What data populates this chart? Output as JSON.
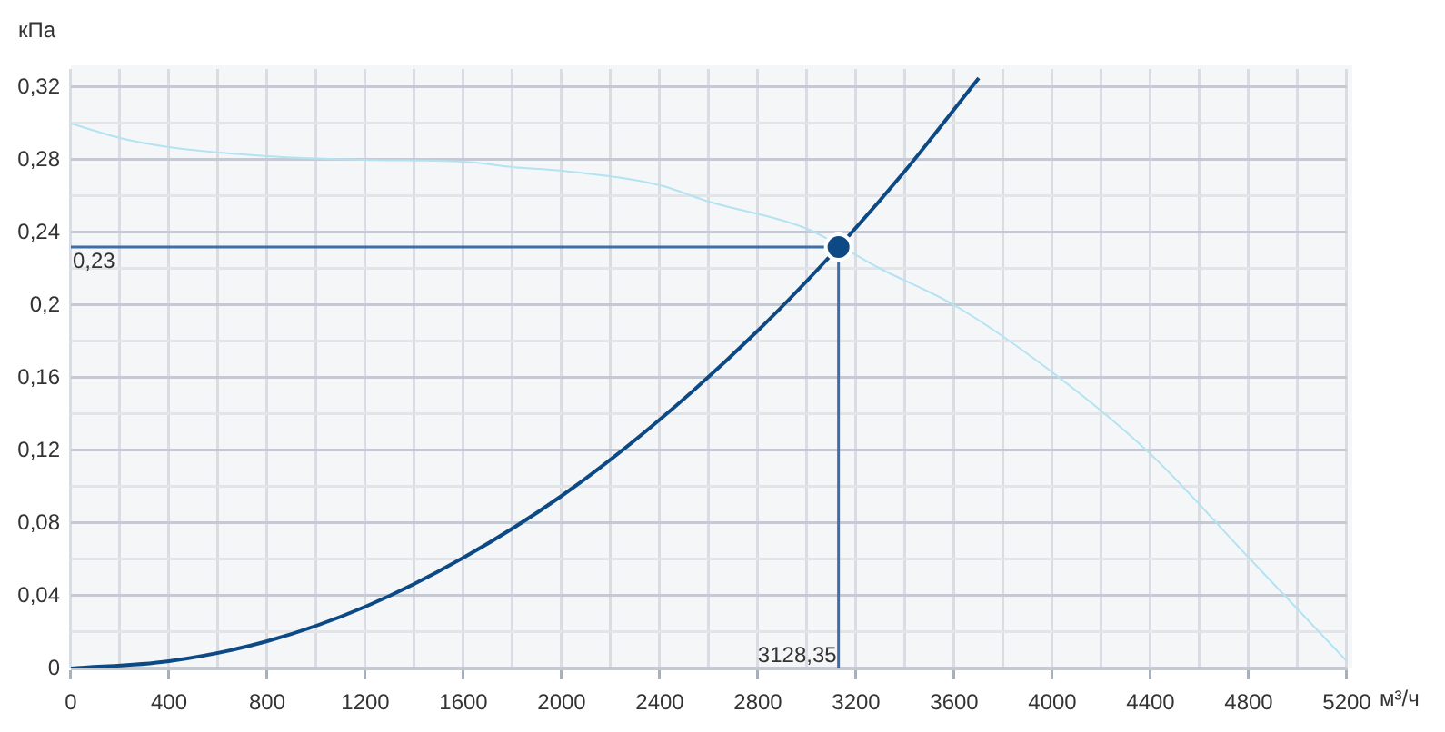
{
  "chart_data": {
    "type": "line",
    "xlabel": "м³/ч",
    "ylabel": "кПа",
    "grid": true,
    "legend": false,
    "marker": "none",
    "line_style": "solid",
    "xlim": [
      0,
      5200
    ],
    "ylim": [
      0,
      0.33
    ],
    "xticks": [
      0,
      {
        "value": 200,
        "label": null
      },
      400,
      {
        "value": 600,
        "label": null
      },
      800,
      {
        "value": 1000,
        "label": null
      },
      1200,
      {
        "value": 1400,
        "label": null
      },
      1600,
      {
        "value": 1800,
        "label": null
      },
      2000,
      {
        "value": 2200,
        "label": null
      },
      2400,
      {
        "value": 2600,
        "label": null
      },
      2800,
      {
        "value": 3000,
        "label": null
      },
      3200,
      {
        "value": 3400,
        "label": null
      },
      3600,
      {
        "value": 3800,
        "label": null
      },
      4000,
      {
        "value": 4200,
        "label": null
      },
      4400,
      {
        "value": 4600,
        "label": null
      },
      4800,
      {
        "value": 5000,
        "label": null
      },
      5200
    ],
    "yticks": [
      0,
      {
        "value": 0.02,
        "label": null
      },
      {
        "value": 0.04,
        "label": "0,04"
      },
      {
        "value": 0.06,
        "label": null
      },
      {
        "value": 0.08,
        "label": "0,08"
      },
      {
        "value": 0.1,
        "label": null
      },
      {
        "value": 0.12,
        "label": "0,12"
      },
      {
        "value": 0.14,
        "label": null
      },
      {
        "value": 0.16,
        "label": "0,16"
      },
      {
        "value": 0.18,
        "label": null
      },
      {
        "value": 0.2,
        "label": "0,2"
      },
      {
        "value": 0.22,
        "label": null
      },
      {
        "value": 0.24,
        "label": "0,24"
      },
      {
        "value": 0.26,
        "label": null
      },
      {
        "value": 0.28,
        "label": "0,28"
      },
      {
        "value": 0.3,
        "label": null
      },
      {
        "value": 0.32,
        "label": "0,32"
      }
    ],
    "series": [
      {
        "color": "#b3e3f2",
        "x": [
          0,
          200,
          400,
          800,
          1200,
          1600,
          1800,
          2000,
          2400,
          2600,
          3000,
          3300,
          3600,
          4000,
          4400,
          4800,
          5200
        ],
        "values": [
          0.3,
          0.292,
          0.287,
          0.282,
          0.28,
          0.279,
          0.276,
          0.274,
          0.266,
          0.257,
          0.242,
          0.22,
          0.2,
          0.163,
          0.118,
          0.061,
          0.004
        ]
      },
      {
        "color": "#0d4a85",
        "x": [
          0,
          400,
          800,
          1200,
          1600,
          2000,
          2400,
          2800,
          3128.35,
          3400,
          3700
        ],
        "values": [
          0,
          0.004,
          0.015,
          0.034,
          0.061,
          0.095,
          0.137,
          0.186,
          0.232,
          0.274,
          0.325
        ]
      },
      {
        "type": "scatter",
        "marker": "circle",
        "color": "#0d4a85",
        "x": [
          3128.35
        ],
        "values": [
          0.232
        ]
      }
    ],
    "ref_lines": [
      {
        "axis": "y",
        "value": 0.232,
        "label": "0,23",
        "color": "#3d6fa6"
      },
      {
        "axis": "x",
        "value": 3128.35,
        "label": "3128,35",
        "color": "#3d6fa6"
      }
    ]
  }
}
